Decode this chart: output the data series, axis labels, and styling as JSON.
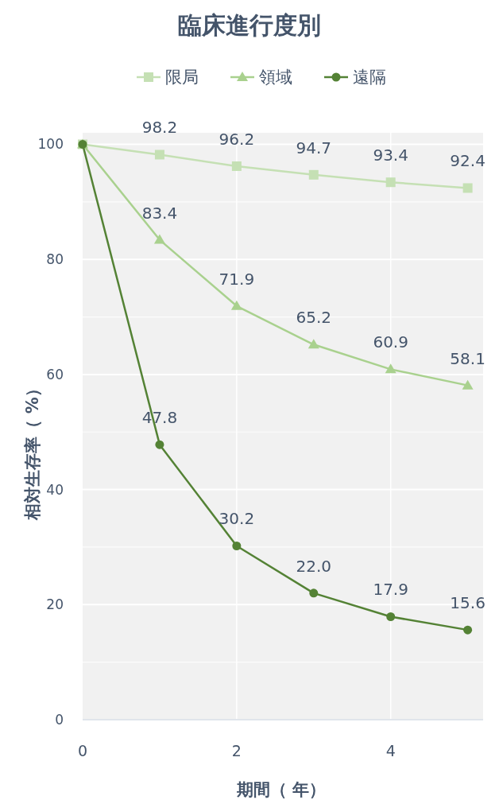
{
  "chart_data": {
    "type": "line",
    "title": "臨床進行度別",
    "xlabel": "期間（ 年）",
    "ylabel": "相対生存率（ %）",
    "x": [
      0,
      1,
      2,
      3,
      4,
      5
    ],
    "xlim": [
      0,
      5.2
    ],
    "xticks": [
      0,
      2,
      4
    ],
    "ylim": [
      0,
      102
    ],
    "yticks": [
      0,
      {
        "value": 10,
        "label": null
      },
      20,
      {
        "value": 30,
        "label": null
      },
      40,
      {
        "value": 50,
        "label": null
      },
      60,
      {
        "value": 70,
        "label": null
      },
      80,
      {
        "value": 90,
        "label": null
      },
      100
    ],
    "grid": true,
    "legend": "top",
    "line_style": "solid",
    "series": [
      {
        "name": "限局",
        "color": "#c5e0b4",
        "marker": "square",
        "values": [
          100,
          98.2,
          96.2,
          94.7,
          93.4,
          92.4
        ],
        "value_labels": [
          null,
          "98.2",
          "96.2",
          "94.7",
          "93.4",
          "92.4"
        ]
      },
      {
        "name": "領域",
        "color": "#a9d18e",
        "marker": "triangle",
        "values": [
          100,
          83.4,
          71.9,
          65.2,
          60.9,
          58.1
        ],
        "value_labels": [
          null,
          "83.4",
          "71.9",
          "65.2",
          "60.9",
          "58.1"
        ]
      },
      {
        "name": "遠隔",
        "color": "#548235",
        "marker": "circle",
        "values": [
          100,
          47.8,
          30.2,
          22.0,
          17.9,
          15.6
        ],
        "value_labels": [
          null,
          "47.8",
          "30.2",
          "22.0",
          "17.9",
          "15.6"
        ]
      }
    ]
  }
}
